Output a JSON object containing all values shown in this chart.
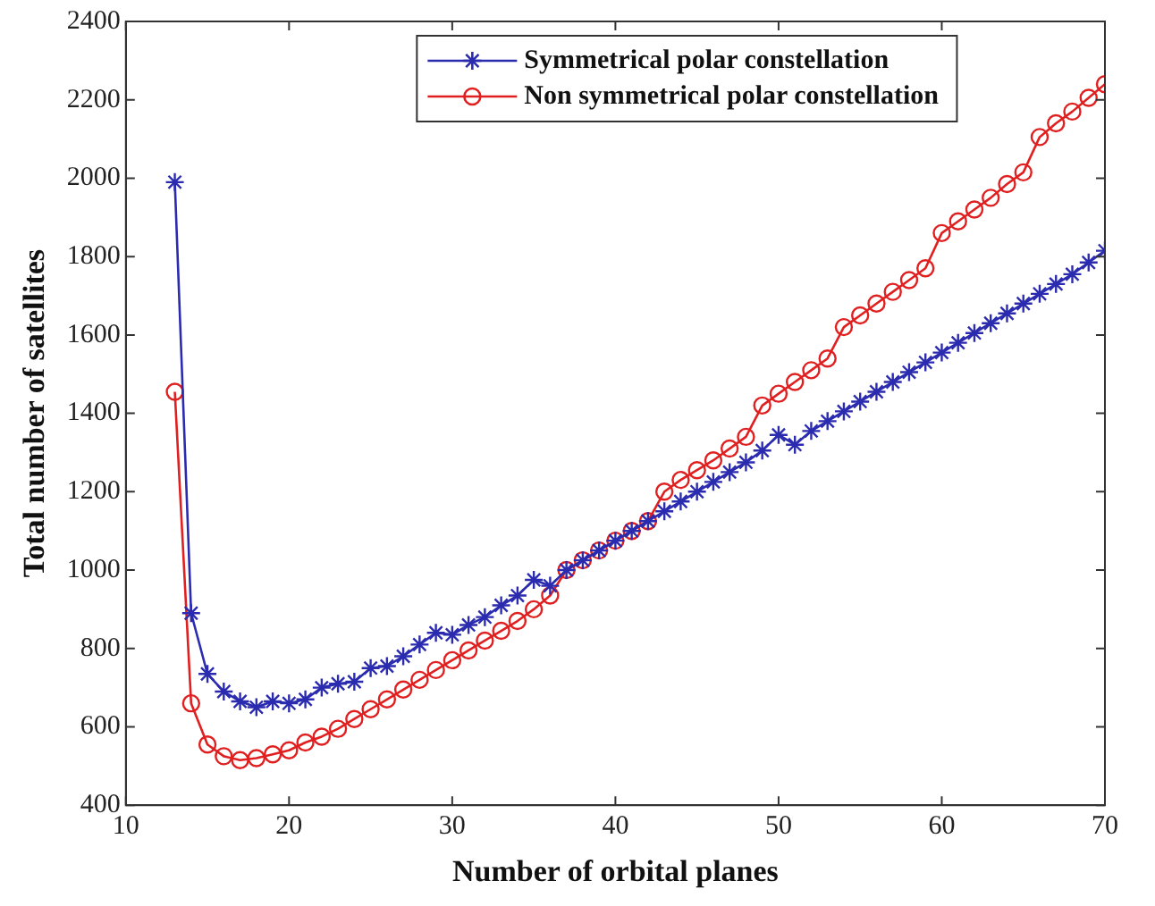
{
  "chart_data": {
    "type": "line",
    "xlabel": "Number of orbital planes",
    "ylabel": "Total number of satellites",
    "x": [
      13,
      14,
      15,
      16,
      17,
      18,
      19,
      20,
      21,
      22,
      23,
      24,
      25,
      26,
      27,
      28,
      29,
      30,
      31,
      32,
      33,
      34,
      35,
      36,
      37,
      38,
      39,
      40,
      41,
      42,
      43,
      44,
      45,
      46,
      47,
      48,
      49,
      50,
      51,
      52,
      53,
      54,
      55,
      56,
      57,
      58,
      59,
      60,
      61,
      62,
      63,
      64,
      65,
      66,
      67,
      68,
      69,
      70
    ],
    "series": [
      {
        "name": "Symmetrical polar constellation",
        "color": "#2b2bb0",
        "marker": "cross",
        "values": [
          1990,
          890,
          735,
          690,
          665,
          650,
          665,
          660,
          670,
          700,
          710,
          715,
          750,
          755,
          780,
          810,
          840,
          835,
          860,
          880,
          910,
          935,
          975,
          960,
          1000,
          1025,
          1050,
          1075,
          1100,
          1125,
          1150,
          1175,
          1200,
          1225,
          1250,
          1275,
          1305,
          1345,
          1320,
          1355,
          1380,
          1405,
          1430,
          1455,
          1480,
          1505,
          1530,
          1555,
          1580,
          1605,
          1630,
          1655,
          1680,
          1705,
          1730,
          1755,
          1785,
          1815
        ]
      },
      {
        "name": "Non symmetrical polar constellation",
        "color": "#e02020",
        "marker": "circle",
        "values": [
          1455,
          660,
          555,
          525,
          515,
          520,
          530,
          540,
          560,
          575,
          595,
          620,
          645,
          670,
          695,
          720,
          745,
          770,
          795,
          820,
          845,
          870,
          900,
          935,
          1000,
          1025,
          1050,
          1075,
          1100,
          1125,
          1200,
          1230,
          1255,
          1280,
          1310,
          1340,
          1420,
          1450,
          1480,
          1510,
          1540,
          1620,
          1650,
          1680,
          1710,
          1740,
          1770,
          1860,
          1890,
          1920,
          1950,
          1985,
          2015,
          2105,
          2140,
          2170,
          2205,
          2240
        ]
      }
    ],
    "xlim": [
      10,
      70
    ],
    "xticks": [
      10,
      20,
      30,
      40,
      50,
      60,
      70
    ],
    "ylim": [
      400,
      2400
    ],
    "yticks": [
      400,
      600,
      800,
      1000,
      1200,
      1400,
      1600,
      1800,
      2000,
      2200,
      2400
    ],
    "grid": false,
    "legend": "top",
    "line_style": "solid"
  }
}
